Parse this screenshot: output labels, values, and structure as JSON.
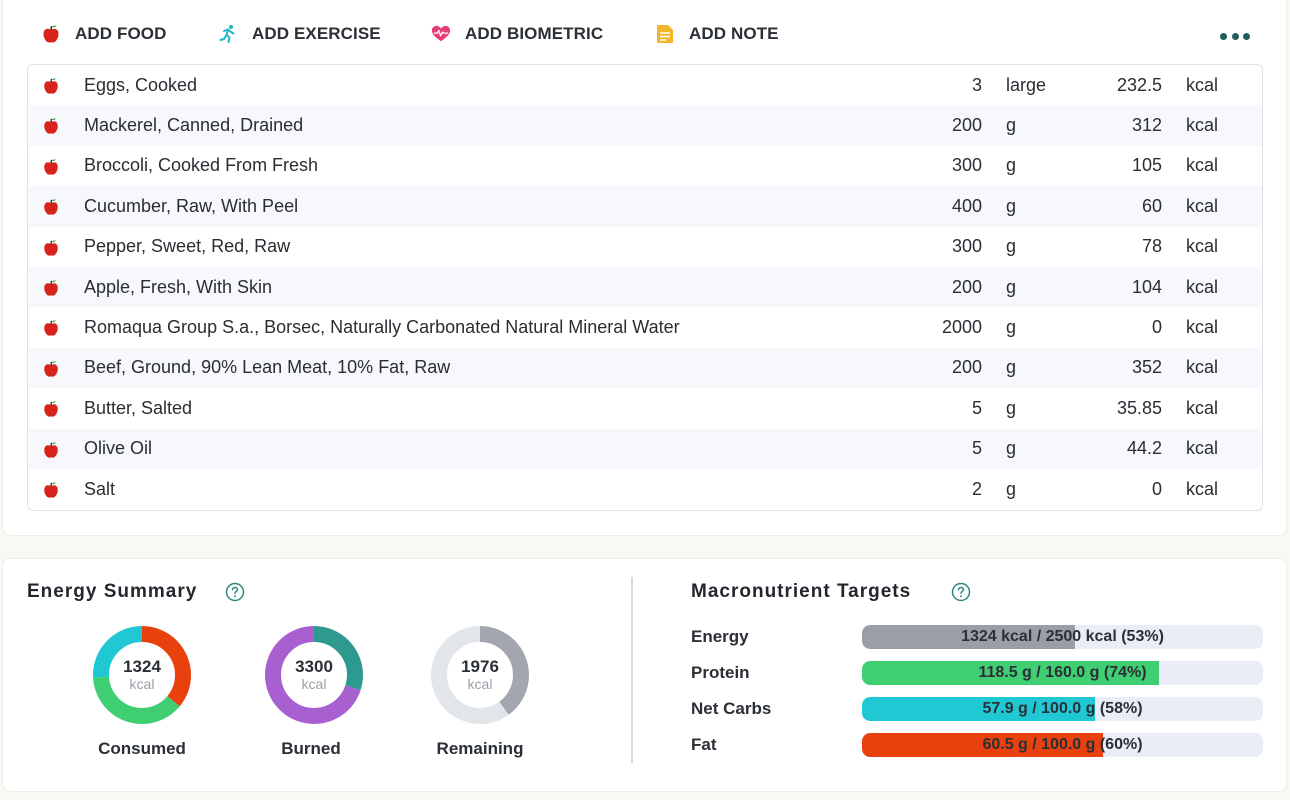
{
  "actions": {
    "add_food": "ADD FOOD",
    "add_exercise": "ADD EXERCISE",
    "add_biometric": "ADD BIOMETRIC",
    "add_note": "ADD NOTE"
  },
  "foods": [
    {
      "name": "Eggs, Cooked",
      "qty": "3",
      "unit": "large",
      "kcal": "232.5",
      "kcal_unit": "kcal"
    },
    {
      "name": "Mackerel, Canned, Drained",
      "qty": "200",
      "unit": "g",
      "kcal": "312",
      "kcal_unit": "kcal"
    },
    {
      "name": "Broccoli, Cooked From Fresh",
      "qty": "300",
      "unit": "g",
      "kcal": "105",
      "kcal_unit": "kcal"
    },
    {
      "name": "Cucumber, Raw, With Peel",
      "qty": "400",
      "unit": "g",
      "kcal": "60",
      "kcal_unit": "kcal"
    },
    {
      "name": "Pepper, Sweet, Red, Raw",
      "qty": "300",
      "unit": "g",
      "kcal": "78",
      "kcal_unit": "kcal"
    },
    {
      "name": "Apple, Fresh, With Skin",
      "qty": "200",
      "unit": "g",
      "kcal": "104",
      "kcal_unit": "kcal"
    },
    {
      "name": "Romaqua Group S.a., Borsec, Naturally Carbonated Natural Mineral Water",
      "qty": "2000",
      "unit": "g",
      "kcal": "0",
      "kcal_unit": "kcal"
    },
    {
      "name": "Beef, Ground, 90% Lean Meat, 10% Fat, Raw",
      "qty": "200",
      "unit": "g",
      "kcal": "352",
      "kcal_unit": "kcal"
    },
    {
      "name": "Butter, Salted",
      "qty": "5",
      "unit": "g",
      "kcal": "35.85",
      "kcal_unit": "kcal"
    },
    {
      "name": "Olive Oil",
      "qty": "5",
      "unit": "g",
      "kcal": "44.2",
      "kcal_unit": "kcal"
    },
    {
      "name": "Salt",
      "qty": "2",
      "unit": "g",
      "kcal": "0",
      "kcal_unit": "kcal"
    }
  ],
  "energy_summary": {
    "title": "Energy Summary",
    "consumed": {
      "value": "1324",
      "unit": "kcal",
      "label": "Consumed",
      "segments": [
        {
          "color": "#e9410e",
          "fraction": 0.36
        },
        {
          "color": "#3fcf72",
          "fraction": 0.38
        },
        {
          "color": "#1fc8d3",
          "fraction": 0.26
        }
      ]
    },
    "burned": {
      "value": "3300",
      "unit": "kcal",
      "label": "Burned",
      "segments": [
        {
          "color": "#2e9a8f",
          "fraction": 0.3
        },
        {
          "color": "#a85fd0",
          "fraction": 0.7
        }
      ]
    },
    "remaining": {
      "value": "1976",
      "unit": "kcal",
      "label": "Remaining",
      "segments": [
        {
          "color": "#a3a6ae",
          "fraction": 0.4
        },
        {
          "color": "#e2e5ea",
          "fraction": 0.6
        }
      ]
    }
  },
  "macro_targets": {
    "title": "Macronutrient Targets",
    "rows": [
      {
        "label": "Energy",
        "text": "1324 kcal / 2500 kcal (53%)",
        "percent": 53,
        "color": "#9b9ea6"
      },
      {
        "label": "Protein",
        "text": "118.5 g / 160.0 g (74%)",
        "percent": 74,
        "color": "#3fcf72"
      },
      {
        "label": "Net Carbs",
        "text": "57.9 g / 100.0 g (58%)",
        "percent": 58,
        "color": "#1fc8d3"
      },
      {
        "label": "Fat",
        "text": "60.5 g / 100.0 g (60%)",
        "percent": 60,
        "color": "#e9410e"
      }
    ]
  }
}
